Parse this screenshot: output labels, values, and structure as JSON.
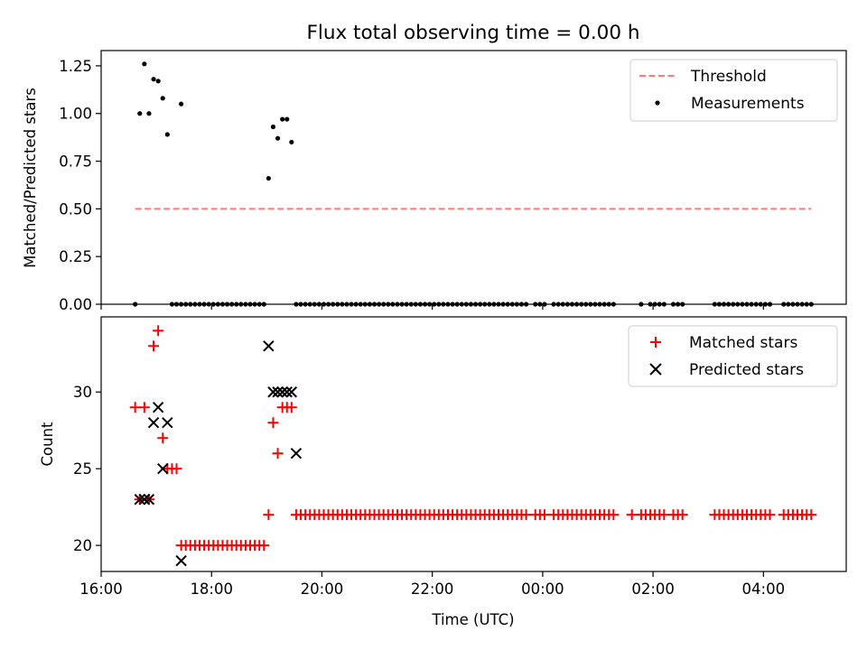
{
  "figure": {
    "title": "Flux total observing time = 0.00 h"
  },
  "chart_data": [
    {
      "type": "scatter",
      "id": "ratio",
      "title": "Flux total observing time = 0.00 h",
      "xlabel": "",
      "ylabel": "Matched/Predicted stars",
      "xlim": [
        "16:00",
        "05:30"
      ],
      "ylim": [
        0,
        1.33
      ],
      "yticks": [
        "0.00",
        "0.25",
        "0.50",
        "0.75",
        "1.00",
        "1.25"
      ],
      "xticks": [
        "16:00",
        "18:00",
        "20:00",
        "22:00",
        "00:00",
        "02:00",
        "04:00"
      ],
      "grid": false,
      "legend": "top-right",
      "threshold": {
        "name": "Threshold",
        "y": 0.5,
        "x_start": "16:37",
        "x_end": "04:52",
        "color": "#ff7777"
      },
      "series": [
        {
          "name": "Measurements",
          "color": "#000000",
          "points": [
            [
              "16:37",
              0.0
            ],
            [
              "16:42",
              1.0
            ],
            [
              "16:47",
              1.26
            ],
            [
              "16:52",
              1.0
            ],
            [
              "16:57",
              1.18
            ],
            [
              "17:02",
              1.17
            ],
            [
              "17:07",
              1.08
            ],
            [
              "17:12",
              0.89
            ],
            [
              "17:27",
              1.05
            ],
            [
              "19:02",
              0.66
            ],
            [
              "19:07",
              0.93
            ],
            [
              "19:12",
              0.87
            ],
            [
              "19:17",
              0.97
            ],
            [
              "19:22",
              0.97
            ],
            [
              "19:27",
              0.85
            ]
          ],
          "zero_ranges": [
            [
              "17:17",
              "18:57",
              5
            ],
            [
              "19:32",
              "23:42",
              5
            ],
            [
              "23:52",
              "00:02",
              5
            ],
            [
              "00:12",
              "01:17",
              5
            ],
            [
              "01:47",
              "01:47",
              5
            ],
            [
              "01:57",
              "02:12",
              5
            ],
            [
              "02:22",
              "02:32",
              5
            ],
            [
              "03:07",
              "04:02",
              5
            ],
            [
              "04:07",
              "04:07",
              5
            ],
            [
              "04:22",
              "04:52",
              5
            ]
          ]
        }
      ]
    },
    {
      "type": "scatter",
      "id": "counts",
      "xlabel": "Time (UTC)",
      "ylabel": "Count",
      "xlim": [
        "16:00",
        "05:30"
      ],
      "ylim": [
        18.3,
        34.9
      ],
      "yticks": [
        "20",
        "25",
        "30"
      ],
      "xticks": [
        "16:00",
        "18:00",
        "20:00",
        "22:00",
        "00:00",
        "02:00",
        "04:00"
      ],
      "grid": false,
      "legend": "top-right",
      "series": [
        {
          "name": "Matched stars",
          "marker": "plus",
          "color": "#ff0000",
          "points": [
            [
              "16:37",
              29
            ],
            [
              "16:42",
              23
            ],
            [
              "16:47",
              29
            ],
            [
              "16:52",
              23
            ],
            [
              "16:57",
              33
            ],
            [
              "17:02",
              34
            ],
            [
              "17:07",
              27
            ],
            [
              "17:12",
              25
            ],
            [
              "17:17",
              25
            ],
            [
              "17:22",
              25
            ],
            [
              "19:02",
              22
            ],
            [
              "19:07",
              28
            ],
            [
              "19:12",
              26
            ],
            [
              "19:17",
              29
            ],
            [
              "19:22",
              29
            ],
            [
              "19:27",
              29
            ]
          ],
          "ranges": [
            [
              "17:27",
              "18:57",
              5,
              20
            ],
            [
              "19:32",
              "23:42",
              5,
              22
            ],
            [
              "23:52",
              "00:02",
              5,
              22
            ],
            [
              "00:12",
              "01:17",
              5,
              22
            ],
            [
              "01:37",
              "01:37",
              5,
              22
            ],
            [
              "01:47",
              "02:12",
              5,
              22
            ],
            [
              "02:22",
              "02:32",
              5,
              22
            ],
            [
              "03:07",
              "04:02",
              5,
              22
            ],
            [
              "04:07",
              "04:07",
              5,
              22
            ],
            [
              "04:22",
              "04:52",
              5,
              22
            ]
          ]
        },
        {
          "name": "Predicted stars",
          "marker": "x",
          "color": "#000000",
          "points": [
            [
              "16:42",
              23
            ],
            [
              "16:47",
              23
            ],
            [
              "16:52",
              23
            ],
            [
              "16:57",
              28
            ],
            [
              "17:02",
              29
            ],
            [
              "17:07",
              25
            ],
            [
              "17:12",
              28
            ],
            [
              "17:27",
              19
            ],
            [
              "19:02",
              33
            ],
            [
              "19:07",
              30
            ],
            [
              "19:12",
              30
            ],
            [
              "19:17",
              30
            ],
            [
              "19:22",
              30
            ],
            [
              "19:27",
              30
            ],
            [
              "19:32",
              26
            ]
          ]
        }
      ]
    }
  ]
}
